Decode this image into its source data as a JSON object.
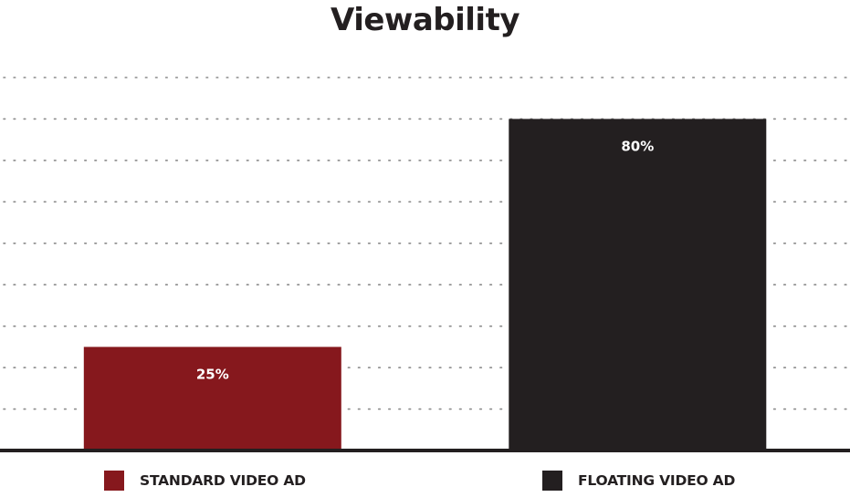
{
  "chart_data": {
    "type": "bar",
    "title": "Viewability",
    "xlabel": "",
    "ylabel": "",
    "ylim": [
      0,
      90
    ],
    "grid": true,
    "legend_position": "bottom",
    "categories": [
      "STANDARD VIDEO AD",
      "FLOATING VIDEO AD"
    ],
    "values": [
      25,
      80
    ],
    "value_labels": [
      "25%",
      "80%"
    ],
    "colors": [
      "#86181d",
      "#231f20"
    ]
  }
}
